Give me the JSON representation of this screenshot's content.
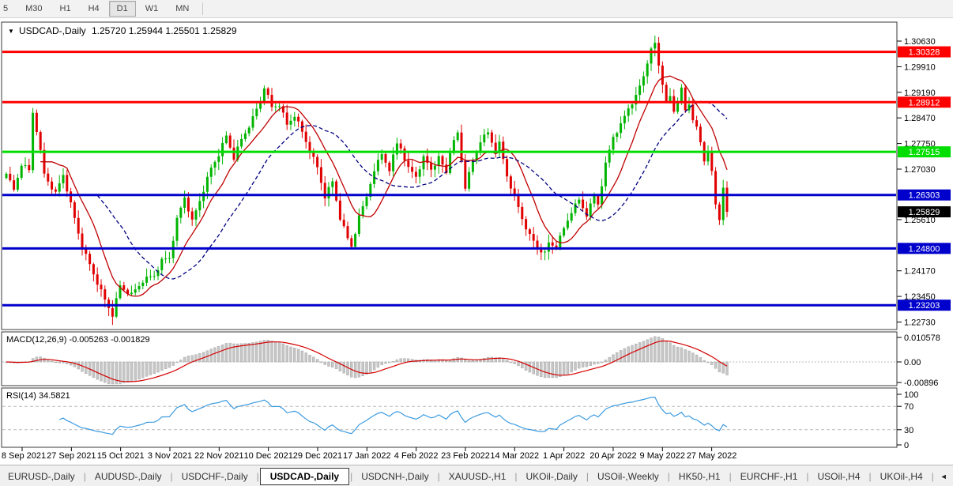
{
  "toolbar": {
    "buttons": [
      "5",
      "M30",
      "H1",
      "H4",
      "D1",
      "W1",
      "MN"
    ],
    "active": "D1"
  },
  "main_chart": {
    "title_symbol": "USDCAD-,Daily",
    "title_ohlc": "1.25720 1.25944 1.25501 1.25829",
    "dropdown_icon": "symbol-dropdown"
  },
  "colors": {
    "bull_candle": "#00b400",
    "bear_candle": "#e10000",
    "line_red": "#ff0000",
    "line_green": "#00dd00",
    "line_blue": "#0000cc",
    "ma_fast": "#c00000",
    "ma_slow": "#000080",
    "macd_hist": "#c6c6c6",
    "macd_hist_stroke": "#a0a0a0",
    "macd_signal": "#d40000",
    "rsi_line": "#3c9be0",
    "panel_border": "#3a3a3a",
    "level_dash": "#bbbbbb",
    "current_badge_bg": "#000000",
    "badge_text": "#ffffff"
  },
  "chart_data": {
    "type": "candlestick",
    "symbol": "USDCAD",
    "timeframe": "Daily",
    "visible_ohlc": {
      "open": 1.2572,
      "high": 1.25944,
      "low": 1.25501,
      "close": 1.25829
    },
    "x_labels": [
      "8 Sep 2021",
      "27 Sep 2021",
      "15 Oct 2021",
      "3 Nov 2021",
      "22 Nov 2021",
      "10 Dec 2021",
      "29 Dec 2021",
      "17 Jan 2022",
      "4 Feb 2022",
      "23 Feb 2022",
      "14 Mar 2022",
      "1 Apr 2022",
      "20 Apr 2022",
      "9 May 2022",
      "27 May 2022"
    ],
    "price_axis_ticks": [
      "1.30630",
      "1.29910",
      "1.29190",
      "1.28470",
      "1.27750",
      "1.27030",
      "1.25610",
      "1.24170",
      "1.23450",
      "1.22730"
    ],
    "price_range_visible": [
      1.2255,
      1.3105
    ],
    "horizontal_lines": [
      {
        "price": 1.30328,
        "label": "1.30328",
        "color": "#ff0000",
        "width": 3
      },
      {
        "price": 1.28912,
        "label": "1.28912",
        "color": "#ff0000",
        "width": 3
      },
      {
        "price": 1.27515,
        "label": "1.27515",
        "color": "#00dd00",
        "width": 3
      },
      {
        "price": 1.26303,
        "label": "1.26303",
        "color": "#0000cc",
        "width": 3
      },
      {
        "price": 1.248,
        "label": "1.24800",
        "color": "#0000cc",
        "width": 3
      },
      {
        "price": 1.23203,
        "label": "1.23203",
        "color": "#0000cc",
        "width": 3
      }
    ],
    "current_price": {
      "value": 1.25829,
      "label": "1.25829"
    },
    "bars": 191,
    "close_anchors": [
      [
        0,
        1.269
      ],
      [
        2,
        1.2645
      ],
      [
        4,
        1.272
      ],
      [
        6,
        1.27
      ],
      [
        7,
        1.2865
      ],
      [
        8,
        1.2815
      ],
      [
        10,
        1.269
      ],
      [
        13,
        1.2635
      ],
      [
        15,
        1.269
      ],
      [
        17,
        1.2605
      ],
      [
        20,
        1.2485
      ],
      [
        23,
        1.241
      ],
      [
        26,
        1.2335
      ],
      [
        28,
        1.2295
      ],
      [
        30,
        1.2375
      ],
      [
        33,
        1.235
      ],
      [
        36,
        1.239
      ],
      [
        39,
        1.2405
      ],
      [
        41,
        1.2445
      ],
      [
        43,
        1.2455
      ],
      [
        45,
        1.256
      ],
      [
        47,
        1.2625
      ],
      [
        49,
        1.2555
      ],
      [
        52,
        1.2645
      ],
      [
        54,
        1.2705
      ],
      [
        56,
        1.2745
      ],
      [
        58,
        1.2795
      ],
      [
        60,
        1.2735
      ],
      [
        62,
        1.2785
      ],
      [
        65,
        1.2845
      ],
      [
        67,
        1.2895
      ],
      [
        68,
        1.2935
      ],
      [
        70,
        1.2875
      ],
      [
        72,
        1.2885
      ],
      [
        74,
        1.2825
      ],
      [
        76,
        1.2855
      ],
      [
        78,
        1.2805
      ],
      [
        80,
        1.2755
      ],
      [
        82,
        1.2705
      ],
      [
        84,
        1.2625
      ],
      [
        86,
        1.2665
      ],
      [
        88,
        1.2565
      ],
      [
        90,
        1.2505
      ],
      [
        91,
        1.2485
      ],
      [
        93,
        1.2565
      ],
      [
        95,
        1.2625
      ],
      [
        97,
        1.2705
      ],
      [
        99,
        1.2745
      ],
      [
        101,
        1.2705
      ],
      [
        103,
        1.2775
      ],
      [
        104,
        1.2765
      ],
      [
        106,
        1.2705
      ],
      [
        108,
        1.2685
      ],
      [
        110,
        1.2735
      ],
      [
        112,
        1.2705
      ],
      [
        114,
        1.2735
      ],
      [
        116,
        1.2695
      ],
      [
        117,
        1.2755
      ],
      [
        119,
        1.2805
      ],
      [
        121,
        1.2655
      ],
      [
        123,
        1.2725
      ],
      [
        125,
        1.2785
      ],
      [
        127,
        1.2805
      ],
      [
        129,
        1.2755
      ],
      [
        130,
        1.2775
      ],
      [
        132,
        1.2685
      ],
      [
        134,
        1.2625
      ],
      [
        136,
        1.2565
      ],
      [
        138,
        1.2515
      ],
      [
        140,
        1.2485
      ],
      [
        142,
        1.2465
      ],
      [
        143,
        1.2495
      ],
      [
        145,
        1.2485
      ],
      [
        147,
        1.2535
      ],
      [
        149,
        1.2585
      ],
      [
        151,
        1.2615
      ],
      [
        153,
        1.2575
      ],
      [
        155,
        1.2625
      ],
      [
        156,
        1.2605
      ],
      [
        158,
        1.2715
      ],
      [
        160,
        1.2795
      ],
      [
        162,
        1.2825
      ],
      [
        164,
        1.2875
      ],
      [
        166,
        1.2905
      ],
      [
        168,
        1.2965
      ],
      [
        169,
        1.3005
      ],
      [
        170,
        1.3035
      ],
      [
        171,
        1.3055
      ],
      [
        172,
        1.2995
      ],
      [
        173,
        1.2945
      ],
      [
        174,
        1.2885
      ],
      [
        175,
        1.2905
      ],
      [
        176,
        1.2865
      ],
      [
        177,
        1.2895
      ],
      [
        178,
        1.2925
      ],
      [
        179,
        1.2865
      ],
      [
        180,
        1.2885
      ],
      [
        181,
        1.2845
      ],
      [
        182,
        1.2815
      ],
      [
        183,
        1.2775
      ],
      [
        184,
        1.2725
      ],
      [
        185,
        1.2755
      ],
      [
        186,
        1.269
      ],
      [
        187,
        1.26
      ],
      [
        188,
        1.256
      ],
      [
        189,
        1.2655
      ],
      [
        190,
        1.25829
      ]
    ],
    "moving_averages": [
      {
        "period": 10,
        "color": "#c00000",
        "style": "solid"
      },
      {
        "period": 25,
        "color": "#000080",
        "style": "dashed"
      }
    ],
    "indicators": {
      "macd": {
        "label": "MACD(12,26,9) -0.005263 -0.001829",
        "params": [
          12,
          26,
          9
        ],
        "main_value": -0.005263,
        "signal_value": -0.001829,
        "axis_ticks": [
          "0.010578",
          "0.00",
          "-0.00896"
        ]
      },
      "rsi": {
        "label": "RSI(14) 34.5821",
        "period": 14,
        "value": 34.5821,
        "levels": [
          70,
          30
        ],
        "axis_ticks": [
          "100",
          "70",
          "30",
          "0"
        ]
      }
    }
  },
  "tabs": {
    "items": [
      "EURUSD-,Daily",
      "AUDUSD-,Daily",
      "USDCHF-,Daily",
      "USDCAD-,Daily",
      "USDCNH-,Daily",
      "XAUUSD-,H1",
      "UKOil-,Daily",
      "USOil-,Weekly",
      "HK50-,H1",
      "EURCHF-,H1",
      "USOil-,H4",
      "UKOil-,H4"
    ],
    "active_index": 3,
    "scroll_left": "◄",
    "scroll_right": "►"
  }
}
